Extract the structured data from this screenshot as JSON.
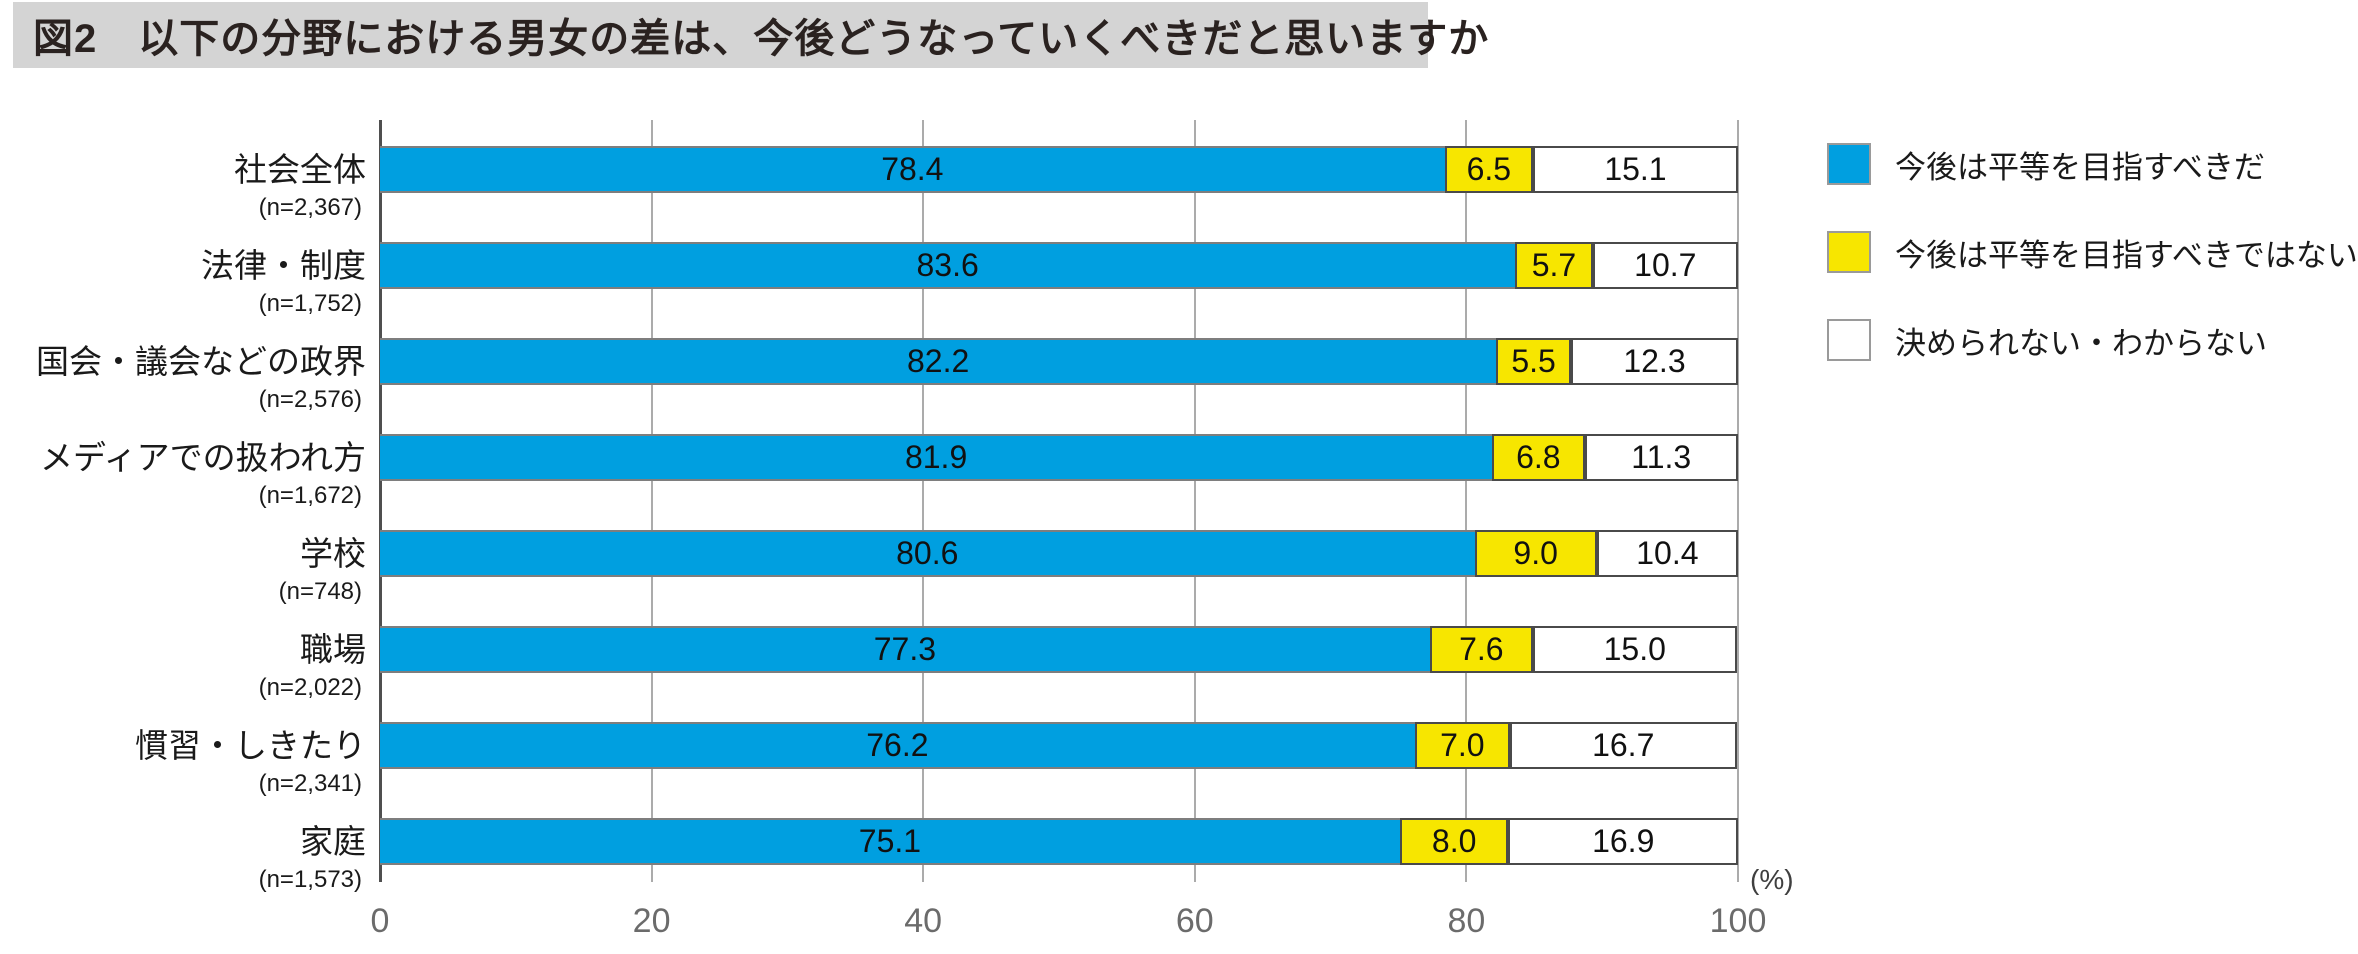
{
  "page": {
    "title": "図2　以下の分野における男女の差は、今後どうなっていくべきだと思いますか"
  },
  "chart_data": {
    "type": "bar",
    "orientation": "horizontal",
    "stacked": true,
    "title": "図2　以下の分野における男女の差は、今後どうなっていくべきだと思いますか",
    "xlabel": "(%)",
    "unit_label": "(%)",
    "xlim": [
      0,
      100
    ],
    "x_ticks": [
      0,
      20,
      40,
      60,
      80,
      100
    ],
    "grid": true,
    "legend_position": "right",
    "categories": [
      "社会全体",
      "法律・制度",
      "国会・議会などの政界",
      "メディアでの扱われ方",
      "学校",
      "職場",
      "慣習・しきたり",
      "家庭"
    ],
    "sample_sizes": [
      "(n=2,367)",
      "(n=1,752)",
      "(n=2,576)",
      "(n=1,672)",
      "(n=748)",
      "(n=2,022)",
      "(n=2,341)",
      "(n=1,573)"
    ],
    "series": [
      {
        "name": "今後は平等を目指すべきだ",
        "color": "#009FE0",
        "text_color": "#111111",
        "values": [
          78.4,
          83.6,
          82.2,
          81.9,
          80.6,
          77.3,
          76.2,
          75.1
        ]
      },
      {
        "name": "今後は平等を目指すべきではない",
        "color": "#F7E600",
        "text_color": "#111111",
        "values": [
          6.5,
          5.7,
          5.5,
          6.8,
          9.0,
          7.6,
          7.0,
          8.0
        ]
      },
      {
        "name": "決められない・わからない",
        "color": "#FFFFFF",
        "text_color": "#111111",
        "values": [
          15.1,
          10.7,
          12.3,
          11.3,
          10.4,
          15.0,
          16.7,
          16.9
        ]
      }
    ],
    "series_keys": [
      "should-aim-for-equality",
      "should-not-aim-for-equality",
      "undecided-dont-know"
    ]
  }
}
